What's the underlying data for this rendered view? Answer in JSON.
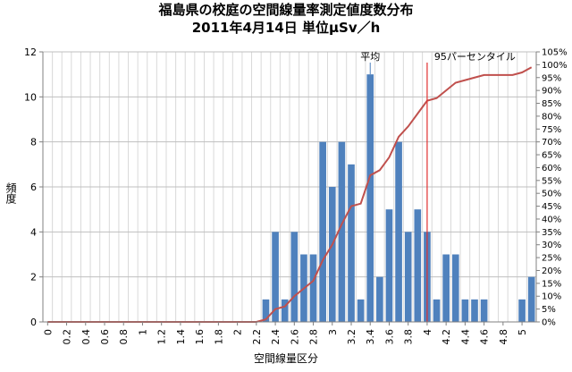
{
  "chart_data": {
    "type": "bar",
    "title": "福島県の校庭の空間線量率測定値度数分布",
    "subtitle": "2011年4月14日 単位μSv／h",
    "xlabel": "空間線量区分",
    "ylabel": "頻度",
    "ylim": [
      0,
      12
    ],
    "y2lim": [
      0,
      1.05
    ],
    "yticks": [
      "0",
      "2",
      "4",
      "6",
      "8",
      "10",
      "12"
    ],
    "y2ticks": [
      "0%",
      "5%",
      "10%",
      "15%",
      "20%",
      "25%",
      "30%",
      "35%",
      "40%",
      "45%",
      "50%",
      "55%",
      "60%",
      "65%",
      "70%",
      "75%",
      "80%",
      "85%",
      "90%",
      "95%",
      "100%",
      "105%"
    ],
    "categories": [
      "0",
      "0.1",
      "0.2",
      "0.3",
      "0.4",
      "0.5",
      "0.6",
      "0.7",
      "0.8",
      "0.9",
      "1",
      "1.1",
      "1.2",
      "1.3",
      "1.4",
      "1.5",
      "1.6",
      "1.7",
      "1.8",
      "1.9",
      "2",
      "2.1",
      "2.2",
      "2.3",
      "2.4",
      "2.5",
      "2.6",
      "2.7",
      "2.8",
      "2.9",
      "3",
      "3.1",
      "3.2",
      "3.3",
      "3.4",
      "3.5",
      "3.6",
      "3.7",
      "3.8",
      "3.9",
      "4",
      "4.1",
      "4.2",
      "4.3",
      "4.4",
      "4.5",
      "4.6",
      "4.7",
      "4.8",
      "4.9",
      "5",
      "5.1"
    ],
    "xtick_labels": [
      "0",
      "0.2",
      "0.4",
      "0.6",
      "0.8",
      "1",
      "1.2",
      "1.4",
      "1.6",
      "1.8",
      "2",
      "2.2",
      "2.4",
      "2.6",
      "2.8",
      "3",
      "3.2",
      "3.4",
      "3.6",
      "3.8",
      "4",
      "4.2",
      "4.4",
      "4.6",
      "4.8",
      "5"
    ],
    "series": [
      {
        "type": "bar",
        "axis": "left",
        "values": [
          0,
          0,
          0,
          0,
          0,
          0,
          0,
          0,
          0,
          0,
          0,
          0,
          0,
          0,
          0,
          0,
          0,
          0,
          0,
          0,
          0,
          0,
          0,
          1,
          4,
          1,
          4,
          3,
          3,
          8,
          6,
          8,
          7,
          1,
          11,
          2,
          5,
          8,
          4,
          5,
          4,
          1,
          3,
          3,
          1,
          1,
          1,
          0,
          0,
          0,
          1,
          2
        ],
        "color": "#4f81bd"
      },
      {
        "type": "line",
        "axis": "right",
        "values": [
          0,
          0,
          0,
          0,
          0,
          0,
          0,
          0,
          0,
          0,
          0,
          0,
          0,
          0,
          0,
          0,
          0,
          0,
          0,
          0,
          0,
          0,
          0,
          0.01,
          0.05,
          0.06,
          0.1,
          0.13,
          0.16,
          0.24,
          0.3,
          0.38,
          0.45,
          0.46,
          0.57,
          0.59,
          0.64,
          0.72,
          0.76,
          0.81,
          0.86,
          0.87,
          0.9,
          0.93,
          0.94,
          0.95,
          0.96,
          0.96,
          0.96,
          0.96,
          0.97,
          0.99
        ],
        "color": "#c0504d"
      }
    ],
    "annotations": [
      {
        "text": "平均",
        "x": 3.4
      },
      {
        "text": "95パーセンタイル",
        "x": 4.0
      }
    ],
    "grid": true
  }
}
